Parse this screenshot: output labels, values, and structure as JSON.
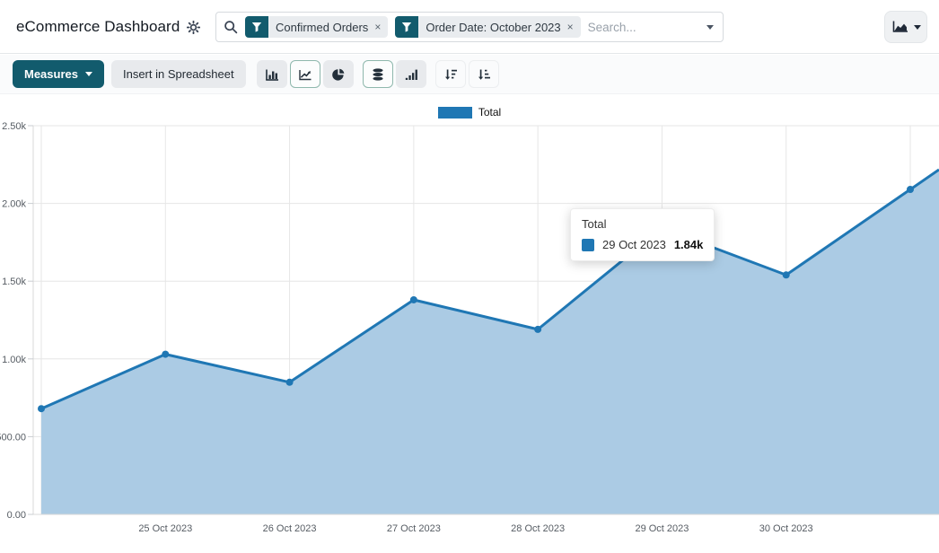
{
  "header": {
    "title": "eCommerce Dashboard",
    "search": {
      "placeholder": "Search...",
      "facets": [
        {
          "label": "Confirmed Orders",
          "remove_glyph": "×"
        },
        {
          "label": "Order Date: October 2023",
          "remove_glyph": "×"
        }
      ]
    }
  },
  "toolbar": {
    "measures_label": "Measures",
    "insert_spreadsheet_label": "Insert in Spreadsheet",
    "chart_type": {
      "selected": [
        "line-chart",
        "stacked"
      ]
    }
  },
  "tooltip": {
    "title": "Total",
    "row": {
      "label": "29 Oct 2023",
      "value": "1.84k"
    }
  },
  "chart_data": {
    "type": "area",
    "title": "",
    "legend": [
      "Total"
    ],
    "legend_position": "top-center",
    "grid": true,
    "categories": [
      "",
      "25 Oct 2023",
      "26 Oct 2023",
      "27 Oct 2023",
      "28 Oct 2023",
      "29 Oct 2023",
      "30 Oct 2023",
      ""
    ],
    "series": [
      {
        "name": "Total",
        "values": [
          680,
          1030,
          850,
          1380,
          1190,
          1840,
          1540,
          2090
        ]
      }
    ],
    "ylim": [
      0,
      2500
    ],
    "y_ticks": [
      {
        "value": 0,
        "label": "0.00"
      },
      {
        "value": 500,
        "label": "500.00"
      },
      {
        "value": 1000,
        "label": "1.00k"
      },
      {
        "value": 1500,
        "label": "1.50k"
      },
      {
        "value": 2000,
        "label": "2.00k"
      },
      {
        "value": 2500,
        "label": "2.50k"
      }
    ],
    "clipped_right": true,
    "colors": {
      "line": "#1f77b4",
      "area_fill": "#abcbe4",
      "grid": "#e6e6e6",
      "axis": "#d9d9d9",
      "accent": "#125b6d"
    }
  }
}
